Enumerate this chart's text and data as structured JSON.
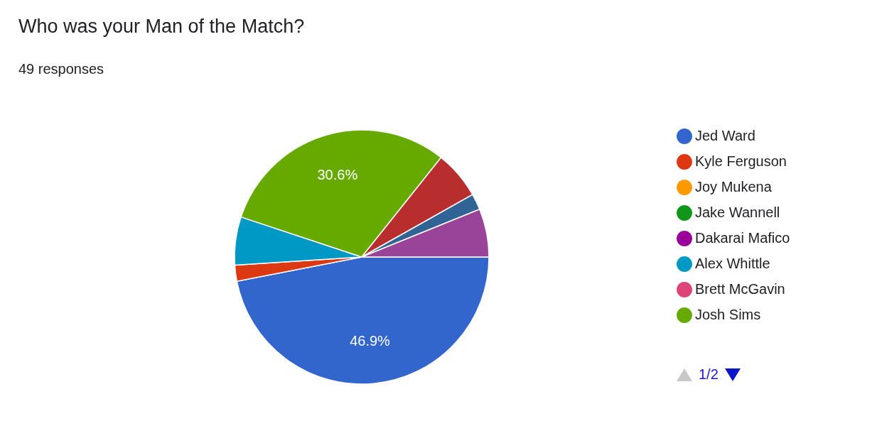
{
  "chart_data": {
    "type": "pie",
    "title": "Who was your Man of the Match?",
    "subtitle": "49 responses",
    "categories": [
      "Jed Ward",
      "Kyle Ferguson",
      "Joy Mukena",
      "Jake Wannell",
      "Dakarai Mafico",
      "Alex Whittle",
      "Brett McGavin",
      "Josh Sims",
      null,
      null,
      null
    ],
    "values": [
      46.94,
      2.04,
      0,
      0,
      0,
      6.12,
      0,
      30.61,
      6.12,
      2.04,
      6.13
    ],
    "colors": [
      "#3366cc",
      "#dc3912",
      "#ff9900",
      "#109618",
      "#990099",
      "#0099c6",
      "#dd4477",
      "#66aa00",
      "#b82e2e",
      "#316395",
      "#994499"
    ],
    "value_labels": [
      "46.9%",
      null,
      null,
      null,
      null,
      null,
      null,
      "30.6%",
      null,
      null,
      null
    ],
    "legend": "right",
    "annotations": [
      "1/2"
    ]
  }
}
